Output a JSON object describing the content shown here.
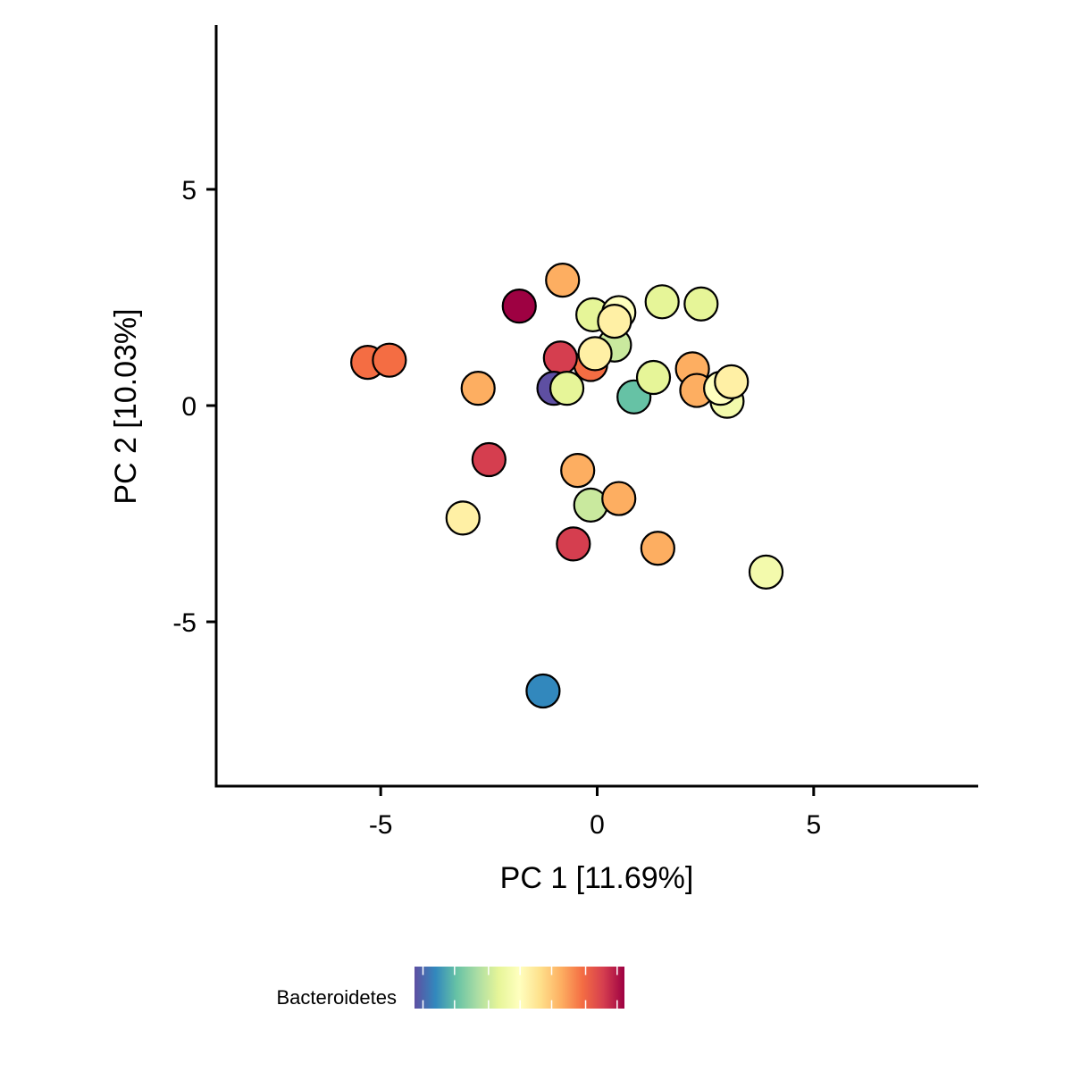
{
  "chart_data": {
    "type": "scatter",
    "xlabel": "PC 1 [11.69%]",
    "ylabel": "PC 2 [10.03%]",
    "xlim": [
      -8.8,
      8.8
    ],
    "ylim": [
      -8.8,
      8.8
    ],
    "xticks": [
      {
        "value": -5,
        "label": "-5"
      },
      {
        "value": 0,
        "label": "0"
      },
      {
        "value": 5,
        "label": "5"
      }
    ],
    "yticks": [
      {
        "value": -5,
        "label": "-5"
      },
      {
        "value": 0,
        "label": "0"
      },
      {
        "value": 5,
        "label": "5"
      }
    ],
    "grid": false,
    "legend": {
      "title": "Bacteroidetes",
      "placement": "bottom-left",
      "type": "colorbar",
      "ticks": [
        0.19,
        0.32,
        0.46,
        0.59,
        0.72,
        0.86,
        0.99
      ]
    },
    "palette": [
      "#5e4fa2",
      "#3288bd",
      "#66c2a5",
      "#abdda4",
      "#e6f598",
      "#ffffbf",
      "#fee08b",
      "#fdae61",
      "#f46d43",
      "#d53e4f",
      "#9e0142"
    ],
    "points": [
      {
        "x": -1.8,
        "y": 2.3,
        "c": 1.0
      },
      {
        "x": -0.8,
        "y": 2.9,
        "c": 0.7
      },
      {
        "x": -5.3,
        "y": 1.0,
        "c": 0.8
      },
      {
        "x": -4.8,
        "y": 1.05,
        "c": 0.8
      },
      {
        "x": -2.75,
        "y": 0.4,
        "c": 0.7
      },
      {
        "x": 0.4,
        "y": 1.4,
        "c": 0.35
      },
      {
        "x": -0.15,
        "y": 0.95,
        "c": 0.8
      },
      {
        "x": -0.85,
        "y": 1.1,
        "c": 0.9
      },
      {
        "x": -1.0,
        "y": 0.4,
        "c": 0.0
      },
      {
        "x": -0.7,
        "y": 0.4,
        "c": 0.4
      },
      {
        "x": -0.1,
        "y": 2.1,
        "c": 0.4
      },
      {
        "x": 0.5,
        "y": 2.15,
        "c": 0.5
      },
      {
        "x": 0.4,
        "y": 1.95,
        "c": 0.55
      },
      {
        "x": -0.05,
        "y": 1.2,
        "c": 0.55
      },
      {
        "x": 1.5,
        "y": 2.4,
        "c": 0.4
      },
      {
        "x": 2.4,
        "y": 2.35,
        "c": 0.4
      },
      {
        "x": 0.85,
        "y": 0.2,
        "c": 0.2
      },
      {
        "x": 1.3,
        "y": 0.65,
        "c": 0.4
      },
      {
        "x": 2.2,
        "y": 0.85,
        "c": 0.7
      },
      {
        "x": 2.3,
        "y": 0.35,
        "c": 0.7
      },
      {
        "x": 3.0,
        "y": 0.1,
        "c": 0.45
      },
      {
        "x": 2.85,
        "y": 0.4,
        "c": 0.5
      },
      {
        "x": 3.1,
        "y": 0.55,
        "c": 0.55
      },
      {
        "x": -2.5,
        "y": -1.25,
        "c": 0.9
      },
      {
        "x": -0.45,
        "y": -1.5,
        "c": 0.7
      },
      {
        "x": -0.15,
        "y": -2.3,
        "c": 0.35
      },
      {
        "x": 0.5,
        "y": -2.15,
        "c": 0.7
      },
      {
        "x": -3.1,
        "y": -2.6,
        "c": 0.55
      },
      {
        "x": -0.55,
        "y": -3.2,
        "c": 0.9
      },
      {
        "x": 1.4,
        "y": -3.3,
        "c": 0.7
      },
      {
        "x": 3.9,
        "y": -3.85,
        "c": 0.45
      },
      {
        "x": -1.25,
        "y": -6.6,
        "c": 0.1
      }
    ]
  }
}
